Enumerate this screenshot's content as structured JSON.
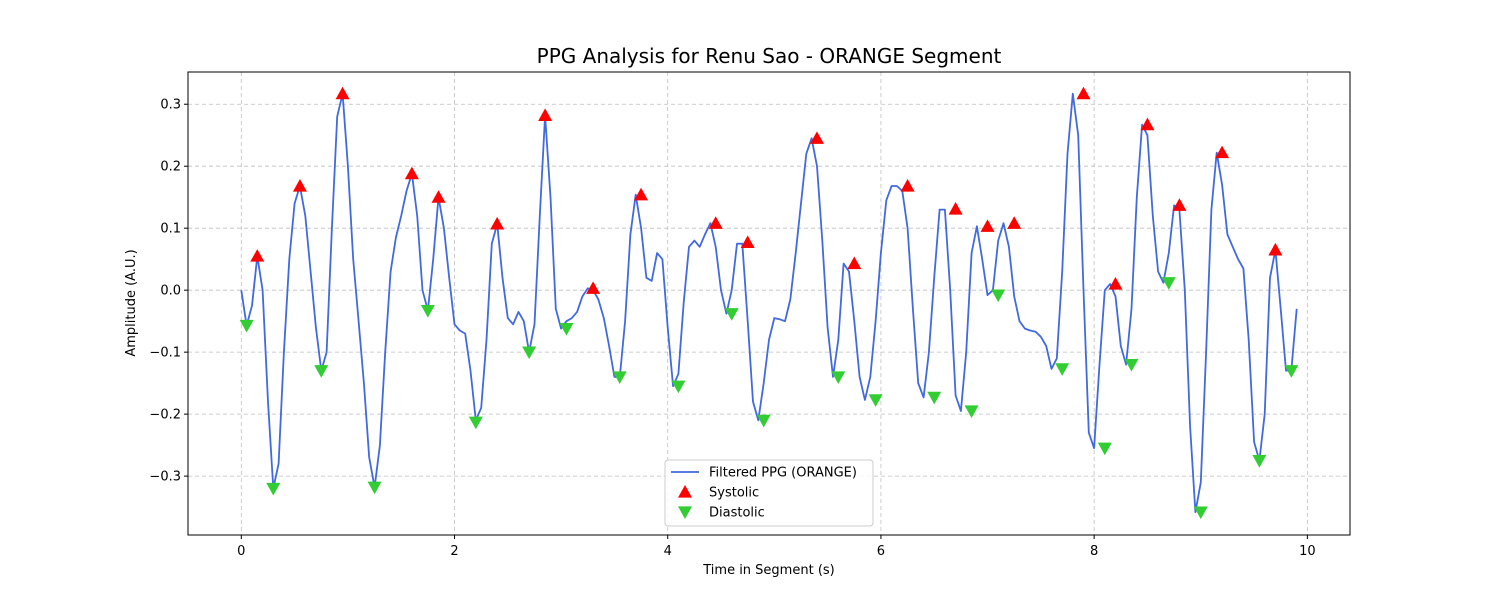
{
  "chart_data": {
    "type": "line",
    "title": "PPG Analysis for Renu Sao - ORANGE Segment",
    "xlabel": "Time in Segment (s)",
    "ylabel": "Amplitude (A.U.)",
    "xlim": [
      -0.5,
      10.4
    ],
    "ylim": [
      -0.395,
      0.352
    ],
    "xticks": [
      0,
      2,
      4,
      6,
      8,
      10
    ],
    "yticks": [
      -0.3,
      -0.2,
      -0.1,
      0.0,
      0.1,
      0.2,
      0.3
    ],
    "xtick_labels": [
      "0",
      "2",
      "4",
      "6",
      "8",
      "10"
    ],
    "ytick_labels": [
      "−0.3",
      "−0.2",
      "−0.1",
      "0.0",
      "0.1",
      "0.2",
      "0.3"
    ],
    "grid": true,
    "legend_position": "lower center",
    "colors": {
      "line": "#4169e1",
      "systolic": "#ff0000",
      "diastolic": "#32cd32"
    },
    "series": [
      {
        "name": "Filtered PPG (ORANGE)",
        "kind": "line",
        "x": [
          0.0,
          0.05,
          0.1,
          0.15,
          0.2,
          0.25,
          0.3,
          0.35,
          0.4,
          0.45,
          0.5,
          0.55,
          0.6,
          0.65,
          0.7,
          0.75,
          0.8,
          0.85,
          0.9,
          0.95,
          1.0,
          1.05,
          1.1,
          1.15,
          1.2,
          1.25,
          1.3,
          1.35,
          1.4,
          1.45,
          1.5,
          1.55,
          1.6,
          1.65,
          1.7,
          1.75,
          1.8,
          1.85,
          1.9,
          1.95,
          2.0,
          2.05,
          2.1,
          2.15,
          2.2,
          2.25,
          2.3,
          2.35,
          2.4,
          2.45,
          2.5,
          2.55,
          2.6,
          2.65,
          2.7,
          2.75,
          2.8,
          2.85,
          2.9,
          2.95,
          3.0,
          3.05,
          3.1,
          3.15,
          3.2,
          3.25,
          3.3,
          3.35,
          3.4,
          3.45,
          3.5,
          3.55,
          3.6,
          3.65,
          3.7,
          3.75,
          3.8,
          3.85,
          3.9,
          3.95,
          4.0,
          4.05,
          4.1,
          4.15,
          4.2,
          4.25,
          4.3,
          4.35,
          4.4,
          4.45,
          4.5,
          4.55,
          4.6,
          4.65,
          4.7,
          4.75,
          4.8,
          4.85,
          4.9,
          4.95,
          5.0,
          5.05,
          5.1,
          5.15,
          5.2,
          5.25,
          5.3,
          5.35,
          5.4,
          5.45,
          5.5,
          5.55,
          5.6,
          5.65,
          5.7,
          5.75,
          5.8,
          5.85,
          5.9,
          5.95,
          6.0,
          6.05,
          6.1,
          6.15,
          6.2,
          6.25,
          6.3,
          6.35,
          6.4,
          6.45,
          6.5,
          6.55,
          6.6,
          6.65,
          6.7,
          6.75,
          6.8,
          6.85,
          6.9,
          6.95,
          7.0,
          7.05,
          7.1,
          7.15,
          7.2,
          7.25,
          7.3,
          7.35,
          7.4,
          7.45,
          7.5,
          7.55,
          7.6,
          7.65,
          7.7,
          7.75,
          7.8,
          7.85,
          7.9,
          7.95,
          8.0,
          8.05,
          8.1,
          8.15,
          8.2,
          8.25,
          8.3,
          8.35,
          8.4,
          8.45,
          8.5,
          8.55,
          8.6,
          8.65,
          8.7,
          8.75,
          8.8,
          8.85,
          8.9,
          8.95,
          9.0,
          9.05,
          9.1,
          9.15,
          9.2,
          9.25,
          9.3,
          9.35,
          9.4,
          9.45,
          9.5,
          9.55,
          9.6,
          9.65,
          9.7,
          9.75,
          9.8,
          9.85,
          9.9
        ],
        "y": [
          0.0,
          -0.057,
          -0.025,
          0.055,
          0.0,
          -0.18,
          -0.32,
          -0.28,
          -0.1,
          0.05,
          0.14,
          0.168,
          0.12,
          0.03,
          -0.06,
          -0.13,
          -0.1,
          0.1,
          0.28,
          0.317,
          0.2,
          0.05,
          -0.05,
          -0.15,
          -0.27,
          -0.318,
          -0.25,
          -0.1,
          0.03,
          0.085,
          0.12,
          0.16,
          0.188,
          0.12,
          0.0,
          -0.033,
          0.05,
          0.15,
          0.1,
          0.02,
          -0.055,
          -0.065,
          -0.07,
          -0.13,
          -0.21,
          -0.19,
          -0.08,
          0.075,
          0.107,
          0.02,
          -0.045,
          -0.055,
          -0.035,
          -0.05,
          -0.1,
          -0.055,
          0.12,
          0.282,
          0.15,
          -0.03,
          -0.062,
          -0.05,
          -0.045,
          -0.035,
          -0.01,
          0.003,
          0.0,
          -0.015,
          -0.045,
          -0.09,
          -0.14,
          -0.14,
          -0.05,
          0.09,
          0.154,
          0.1,
          0.02,
          0.015,
          0.06,
          0.05,
          -0.06,
          -0.155,
          -0.135,
          -0.02,
          0.07,
          0.08,
          0.07,
          0.09,
          0.108,
          0.07,
          0.0,
          -0.038,
          0.0,
          0.075,
          0.075,
          -0.05,
          -0.18,
          -0.21,
          -0.15,
          -0.08,
          -0.045,
          -0.047,
          -0.05,
          -0.015,
          0.06,
          0.14,
          0.22,
          0.245,
          0.2,
          0.08,
          -0.06,
          -0.14,
          -0.08,
          0.043,
          0.03,
          -0.05,
          -0.14,
          -0.177,
          -0.14,
          -0.05,
          0.06,
          0.145,
          0.168,
          0.168,
          0.16,
          0.1,
          -0.03,
          -0.15,
          -0.173,
          -0.1,
          0.02,
          0.13,
          0.13,
          0.0,
          -0.17,
          -0.195,
          -0.1,
          0.06,
          0.103,
          0.05,
          -0.008,
          0.0,
          0.08,
          0.108,
          0.07,
          -0.01,
          -0.05,
          -0.062,
          -0.065,
          -0.067,
          -0.075,
          -0.09,
          -0.127,
          -0.11,
          0.03,
          0.22,
          0.317,
          0.25,
          0.0,
          -0.23,
          -0.255,
          -0.12,
          0.0,
          0.01,
          -0.01,
          -0.09,
          -0.12,
          -0.03,
          0.15,
          0.267,
          0.25,
          0.12,
          0.03,
          0.012,
          0.06,
          0.137,
          0.13,
          0.0,
          -0.22,
          -0.358,
          -0.31,
          -0.1,
          0.13,
          0.222,
          0.17,
          0.09,
          0.07,
          0.05,
          0.035,
          -0.08,
          -0.245,
          -0.275,
          -0.2,
          0.02,
          0.065,
          -0.03,
          -0.13,
          -0.128,
          -0.03
        ]
      },
      {
        "name": "Systolic",
        "kind": "marker",
        "marker": "triangle-up",
        "x": [
          0.15,
          0.55,
          0.95,
          1.6,
          1.85,
          2.4,
          2.85,
          3.3,
          3.75,
          4.45,
          4.75,
          5.4,
          5.75,
          6.25,
          6.7,
          7.0,
          7.25,
          7.9,
          8.2,
          8.5,
          8.8,
          9.2,
          9.7
        ],
        "y": [
          0.055,
          0.168,
          0.317,
          0.188,
          0.15,
          0.107,
          0.282,
          0.003,
          0.154,
          0.108,
          0.077,
          0.245,
          0.043,
          0.168,
          0.131,
          0.103,
          0.108,
          0.317,
          0.01,
          0.267,
          0.137,
          0.222,
          0.065
        ]
      },
      {
        "name": "Diastolic",
        "kind": "marker",
        "marker": "triangle-down",
        "x": [
          0.05,
          0.3,
          0.75,
          1.25,
          1.75,
          2.2,
          2.7,
          3.05,
          3.55,
          4.1,
          4.6,
          4.9,
          5.6,
          5.95,
          6.5,
          6.85,
          7.1,
          7.7,
          8.1,
          8.35,
          8.7,
          9.0,
          9.55,
          9.85
        ],
        "y": [
          -0.057,
          -0.32,
          -0.13,
          -0.318,
          -0.033,
          -0.213,
          -0.1,
          -0.062,
          -0.14,
          -0.155,
          -0.038,
          -0.21,
          -0.14,
          -0.177,
          -0.173,
          -0.195,
          -0.008,
          -0.127,
          -0.255,
          -0.12,
          0.012,
          -0.358,
          -0.275,
          -0.13
        ]
      }
    ]
  }
}
